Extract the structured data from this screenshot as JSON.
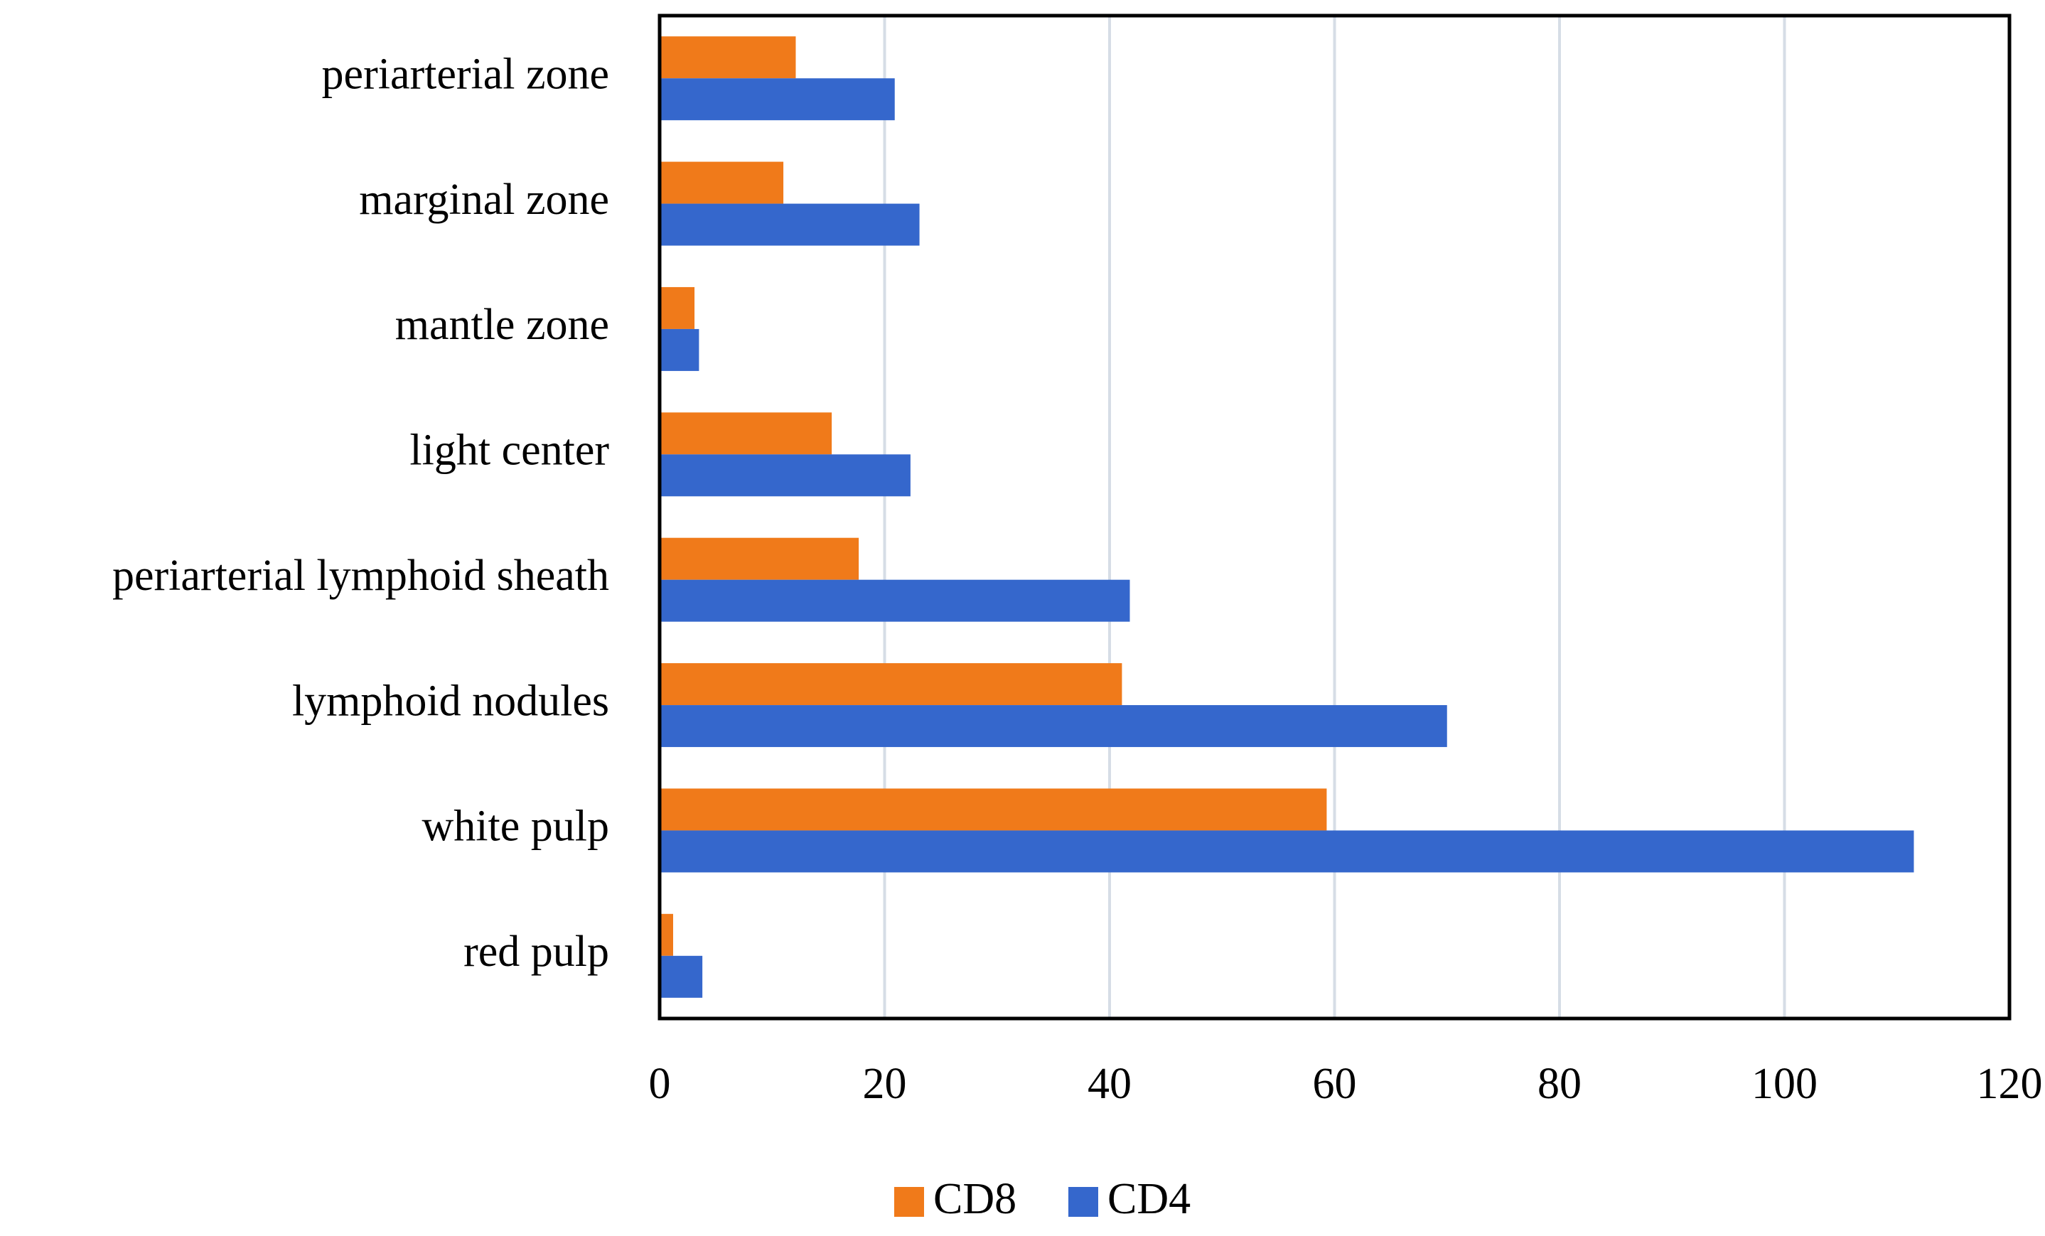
{
  "chart_data": {
    "type": "hbar",
    "categories": [
      "periarterial zone",
      "marginal zone",
      "mantle zone",
      "light center",
      "periarterial lymphoid sheath",
      "lymphoid nodules",
      "white pulp",
      "red pulp"
    ],
    "series": [
      {
        "name": "CD8",
        "color": "#f07a1a",
        "values": [
          12.1,
          11.0,
          3.1,
          15.3,
          17.7,
          41.1,
          59.3,
          1.2
        ]
      },
      {
        "name": "CD4",
        "color": "#3567cc",
        "values": [
          20.9,
          23.1,
          3.5,
          22.3,
          41.8,
          70.0,
          111.5,
          3.8
        ]
      }
    ],
    "xlim": [
      0,
      120
    ],
    "xticks": [
      0,
      20,
      40,
      60,
      80,
      100,
      120
    ],
    "grid": true,
    "legend": "bottom"
  }
}
